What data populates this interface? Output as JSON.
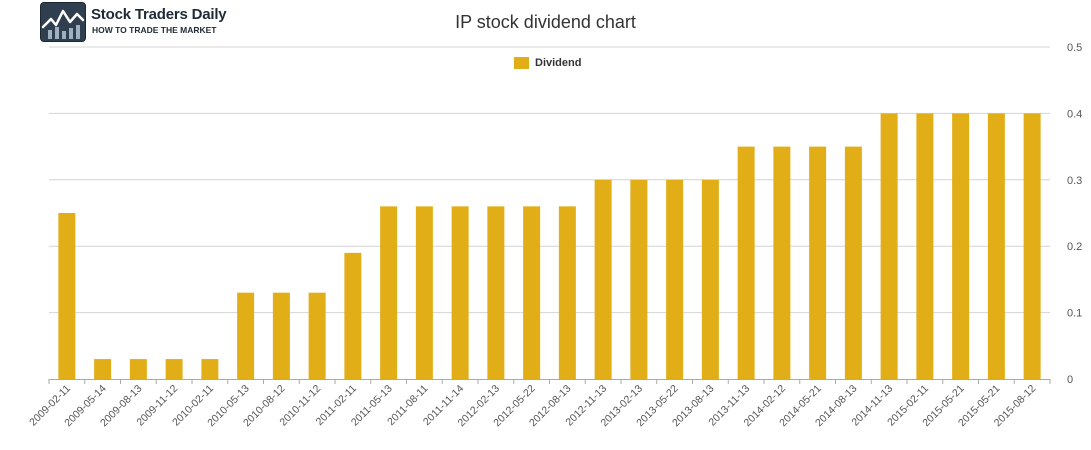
{
  "logo": {
    "name": "Stock Traders Daily",
    "tagline": "HOW TO TRADE THE MARKET",
    "icon": "chart-logo-icon"
  },
  "colors": {
    "bar": "#E1AE18",
    "grid": "#d4d4d4",
    "axis": "#aaaaaa",
    "text": "#555555"
  },
  "chart_data": {
    "type": "bar",
    "title": "IP stock dividend chart",
    "xlabel": "",
    "ylabel": "",
    "ylim": [
      0,
      0.5
    ],
    "yticks": [
      "0",
      "0.1",
      "0.2",
      "0.3",
      "0.4",
      "0.5"
    ],
    "legend_position": "top-center",
    "grid": true,
    "categories": [
      "2009-02-11",
      "2009-05-14",
      "2009-08-13",
      "2009-11-12",
      "2010-02-11",
      "2010-05-13",
      "2010-08-12",
      "2010-11-12",
      "2011-02-11",
      "2011-05-13",
      "2011-08-11",
      "2011-11-14",
      "2012-02-13",
      "2012-05-22",
      "2012-08-13",
      "2012-11-13",
      "2013-02-13",
      "2013-05-22",
      "2013-08-13",
      "2013-11-13",
      "2014-02-12",
      "2014-05-21",
      "2014-08-13",
      "2014-11-13",
      "2015-02-11",
      "2015-05-21",
      "2015-05-21",
      "2015-08-12"
    ],
    "series": [
      {
        "name": "Dividend",
        "values": [
          0.25,
          0.03,
          0.03,
          0.03,
          0.03,
          0.13,
          0.13,
          0.13,
          0.19,
          0.26,
          0.26,
          0.26,
          0.26,
          0.26,
          0.26,
          0.3,
          0.3,
          0.3,
          0.3,
          0.35,
          0.35,
          0.35,
          0.35,
          0.4,
          0.4,
          0.4,
          0.4,
          0.4
        ]
      }
    ]
  }
}
